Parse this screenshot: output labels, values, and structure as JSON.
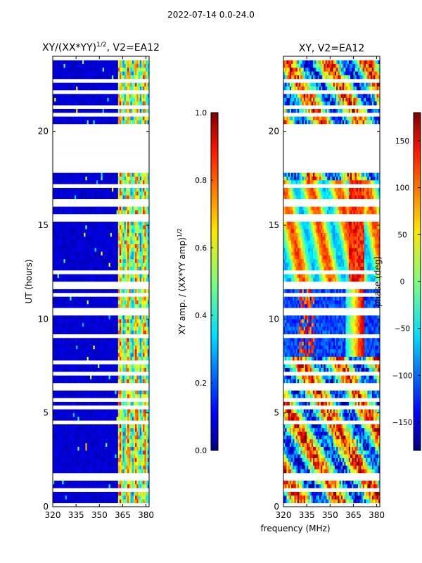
{
  "suptitle": "2022-07-14 0.0-24.0",
  "shared_xlabel": "frequency (MHz)",
  "colors": {
    "flag_white": "#ffffff",
    "axis": "#000000"
  },
  "chart_data": [
    {
      "type": "heatmap",
      "title": "XY/(XX*YY)^(1/2), V2=EA12",
      "title_main": "XY/(XX*YY)",
      "title_exp": "1/2",
      "title_tail": ", V2=EA12",
      "xlabel": "",
      "ylabel": "UT (hours)",
      "xlim": [
        320,
        382
      ],
      "ylim": [
        0,
        24
      ],
      "xticks": [
        320,
        335,
        350,
        365,
        380
      ],
      "yticks": [
        0,
        5,
        10,
        15,
        20
      ],
      "colorbar": {
        "label": "XY amp. / (XX*YY amp)^(1/2)",
        "label_main": "XY amp. / (XX*YY amp)",
        "label_exp": "1/2",
        "range": [
          0.0,
          1.0
        ],
        "ticks": [
          "0.0",
          "0.2",
          "0.4",
          "0.6",
          "0.8",
          "1.0"
        ],
        "colormap": "jet"
      },
      "flagged_hours": [
        [
          19.5,
          20.3
        ],
        [
          17.8,
          19.5
        ]
      ]
    },
    {
      "type": "heatmap",
      "title": "XY, V2=EA12",
      "xlabel": "frequency (MHz)",
      "ylabel": "",
      "xlim": [
        320,
        382
      ],
      "ylim": [
        0,
        24
      ],
      "xticks": [
        320,
        335,
        350,
        365,
        380
      ],
      "yticks": [
        0,
        5,
        10,
        15,
        20
      ],
      "colorbar": {
        "label": "phase (deg)",
        "range": [
          -180,
          180
        ],
        "ticks": [
          "150",
          "100",
          "50",
          "0",
          "−50",
          "−100",
          "−150"
        ],
        "colormap": "jet"
      },
      "flagged_hours": [
        [
          17.8,
          20.3
        ]
      ]
    }
  ]
}
